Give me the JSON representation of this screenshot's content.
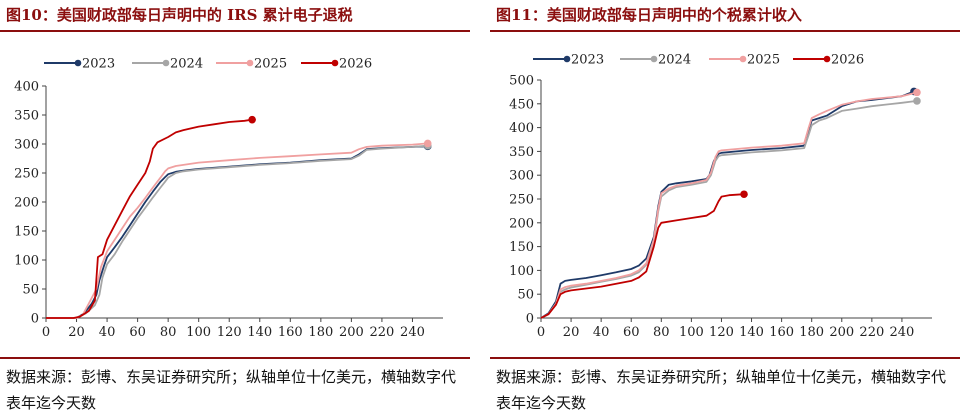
{
  "figures": [
    {
      "title": "图10：美国财政部每日声明中的 IRS 累计电子退税",
      "source": "数据来源：彭博、东吴证券研究所；纵轴单位十亿美元，横轴数字代表年迄今天数"
    },
    {
      "title": "图11：美国财政部每日声明中的个税累计收入",
      "source": "数据来源：彭博、东吴证券研究所；纵轴单位十亿美元，横轴数字代表年迄今天数"
    }
  ],
  "chart_data": [
    {
      "type": "line",
      "title": "",
      "xlabel": "",
      "ylabel": "",
      "xlim": [
        0,
        260
      ],
      "ylim": [
        0,
        400
      ],
      "xticks": [
        0,
        20,
        40,
        60,
        80,
        100,
        120,
        140,
        160,
        180,
        200,
        220,
        240
      ],
      "yticks": [
        0,
        50,
        100,
        150,
        200,
        250,
        300,
        350,
        400
      ],
      "grid": false,
      "legend_position": "top",
      "series": [
        {
          "name": "2023",
          "color": "#1f3a68",
          "end_marker": true,
          "points": [
            [
              0,
              0
            ],
            [
              20,
              0
            ],
            [
              25,
              8
            ],
            [
              30,
              25
            ],
            [
              33,
              40
            ],
            [
              35,
              65
            ],
            [
              38,
              90
            ],
            [
              40,
              105
            ],
            [
              45,
              122
            ],
            [
              50,
              140
            ],
            [
              55,
              160
            ],
            [
              60,
              180
            ],
            [
              65,
              200
            ],
            [
              70,
              218
            ],
            [
              75,
              235
            ],
            [
              78,
              243
            ],
            [
              80,
              248
            ],
            [
              85,
              252
            ],
            [
              90,
              254
            ],
            [
              100,
              257
            ],
            [
              120,
              261
            ],
            [
              140,
              265
            ],
            [
              160,
              268
            ],
            [
              180,
              272
            ],
            [
              200,
              275
            ],
            [
              205,
              282
            ],
            [
              210,
              291
            ],
            [
              220,
              293
            ],
            [
              240,
              295
            ],
            [
              250,
              296
            ]
          ]
        },
        {
          "name": "2024",
          "color": "#a6a6a6",
          "end_marker": true,
          "points": [
            [
              0,
              0
            ],
            [
              20,
              0
            ],
            [
              26,
              8
            ],
            [
              32,
              22
            ],
            [
              35,
              40
            ],
            [
              37,
              70
            ],
            [
              40,
              93
            ],
            [
              45,
              110
            ],
            [
              50,
              132
            ],
            [
              55,
              152
            ],
            [
              60,
              172
            ],
            [
              65,
              190
            ],
            [
              70,
              208
            ],
            [
              75,
              225
            ],
            [
              78,
              235
            ],
            [
              80,
              242
            ],
            [
              85,
              250
            ],
            [
              90,
              253
            ],
            [
              100,
              256
            ],
            [
              120,
              260
            ],
            [
              140,
              264
            ],
            [
              160,
              267
            ],
            [
              180,
              271
            ],
            [
              200,
              274
            ],
            [
              205,
              280
            ],
            [
              210,
              290
            ],
            [
              220,
              292
            ],
            [
              240,
              295
            ],
            [
              250,
              297
            ]
          ]
        },
        {
          "name": "2025",
          "color": "#f0a0a0",
          "end_marker": true,
          "points": [
            [
              0,
              0
            ],
            [
              20,
              0
            ],
            [
              24,
              5
            ],
            [
              28,
              25
            ],
            [
              33,
              50
            ],
            [
              36,
              88
            ],
            [
              40,
              115
            ],
            [
              45,
              135
            ],
            [
              50,
              155
            ],
            [
              55,
              175
            ],
            [
              60,
              190
            ],
            [
              65,
              207
            ],
            [
              70,
              225
            ],
            [
              75,
              242
            ],
            [
              78,
              253
            ],
            [
              80,
              258
            ],
            [
              85,
              262
            ],
            [
              90,
              264
            ],
            [
              100,
              268
            ],
            [
              120,
              272
            ],
            [
              140,
              276
            ],
            [
              160,
              279
            ],
            [
              180,
              282
            ],
            [
              200,
              285
            ],
            [
              205,
              291
            ],
            [
              210,
              295
            ],
            [
              220,
              297
            ],
            [
              240,
              299
            ],
            [
              250,
              301
            ]
          ]
        },
        {
          "name": "2026",
          "color": "#c00000",
          "end_marker": true,
          "points": [
            [
              0,
              0
            ],
            [
              18,
              0
            ],
            [
              22,
              2
            ],
            [
              28,
              12
            ],
            [
              32,
              30
            ],
            [
              34,
              105
            ],
            [
              37,
              110
            ],
            [
              40,
              135
            ],
            [
              45,
              160
            ],
            [
              50,
              185
            ],
            [
              55,
              210
            ],
            [
              60,
              230
            ],
            [
              65,
              250
            ],
            [
              68,
              270
            ],
            [
              70,
              292
            ],
            [
              73,
              303
            ],
            [
              80,
              312
            ],
            [
              85,
              320
            ],
            [
              90,
              324
            ],
            [
              100,
              330
            ],
            [
              110,
              334
            ],
            [
              120,
              338
            ],
            [
              130,
              340
            ],
            [
              135,
              342
            ]
          ]
        }
      ]
    },
    {
      "type": "line",
      "title": "",
      "xlabel": "",
      "ylabel": "",
      "xlim": [
        0,
        260
      ],
      "ylim": [
        0,
        500
      ],
      "xticks": [
        0,
        20,
        40,
        60,
        80,
        100,
        120,
        140,
        160,
        180,
        200,
        220,
        240
      ],
      "yticks": [
        0,
        50,
        100,
        150,
        200,
        250,
        300,
        350,
        400,
        450,
        500
      ],
      "grid": false,
      "legend_position": "top",
      "series": [
        {
          "name": "2023",
          "color": "#1f3a68",
          "end_marker": true,
          "points": [
            [
              0,
              0
            ],
            [
              5,
              10
            ],
            [
              10,
              35
            ],
            [
              13,
              72
            ],
            [
              16,
              78
            ],
            [
              20,
              80
            ],
            [
              30,
              84
            ],
            [
              40,
              90
            ],
            [
              50,
              96
            ],
            [
              60,
              103
            ],
            [
              65,
              110
            ],
            [
              70,
              125
            ],
            [
              75,
              170
            ],
            [
              78,
              235
            ],
            [
              80,
              265
            ],
            [
              85,
              280
            ],
            [
              90,
              283
            ],
            [
              100,
              287
            ],
            [
              110,
              292
            ],
            [
              112,
              300
            ],
            [
              115,
              330
            ],
            [
              118,
              345
            ],
            [
              120,
              347
            ],
            [
              130,
              350
            ],
            [
              140,
              353
            ],
            [
              160,
              357
            ],
            [
              175,
              362
            ],
            [
              178,
              395
            ],
            [
              180,
              415
            ],
            [
              185,
              420
            ],
            [
              190,
              425
            ],
            [
              200,
              445
            ],
            [
              210,
              455
            ],
            [
              220,
              458
            ],
            [
              240,
              466
            ],
            [
              248,
              476
            ]
          ]
        },
        {
          "name": "2024",
          "color": "#a6a6a6",
          "end_marker": true,
          "points": [
            [
              0,
              0
            ],
            [
              5,
              8
            ],
            [
              10,
              30
            ],
            [
              13,
              55
            ],
            [
              16,
              60
            ],
            [
              20,
              64
            ],
            [
              30,
              70
            ],
            [
              40,
              76
            ],
            [
              50,
              82
            ],
            [
              60,
              89
            ],
            [
              65,
              96
            ],
            [
              70,
              112
            ],
            [
              75,
              158
            ],
            [
              78,
              225
            ],
            [
              80,
              255
            ],
            [
              85,
              268
            ],
            [
              90,
              275
            ],
            [
              100,
              280
            ],
            [
              110,
              286
            ],
            [
              113,
              300
            ],
            [
              116,
              330
            ],
            [
              118,
              340
            ],
            [
              120,
              342
            ],
            [
              130,
              345
            ],
            [
              140,
              348
            ],
            [
              160,
              352
            ],
            [
              175,
              357
            ],
            [
              178,
              385
            ],
            [
              180,
              405
            ],
            [
              185,
              415
            ],
            [
              190,
              420
            ],
            [
              200,
              435
            ],
            [
              210,
              440
            ],
            [
              220,
              445
            ],
            [
              240,
              452
            ],
            [
              250,
              456
            ]
          ]
        },
        {
          "name": "2025",
          "color": "#f0a0a0",
          "end_marker": true,
          "points": [
            [
              0,
              0
            ],
            [
              5,
              8
            ],
            [
              10,
              30
            ],
            [
              13,
              60
            ],
            [
              16,
              65
            ],
            [
              20,
              68
            ],
            [
              30,
              72
            ],
            [
              40,
              78
            ],
            [
              50,
              84
            ],
            [
              60,
              92
            ],
            [
              65,
              100
            ],
            [
              70,
              115
            ],
            [
              75,
              165
            ],
            [
              78,
              230
            ],
            [
              80,
              262
            ],
            [
              85,
              272
            ],
            [
              90,
              278
            ],
            [
              100,
              283
            ],
            [
              110,
              290
            ],
            [
              113,
              305
            ],
            [
              116,
              338
            ],
            [
              118,
              350
            ],
            [
              120,
              352
            ],
            [
              130,
              355
            ],
            [
              140,
              358
            ],
            [
              160,
              362
            ],
            [
              175,
              367
            ],
            [
              178,
              400
            ],
            [
              180,
              420
            ],
            [
              185,
              428
            ],
            [
              190,
              435
            ],
            [
              200,
              448
            ],
            [
              210,
              455
            ],
            [
              220,
              460
            ],
            [
              240,
              466
            ],
            [
              250,
              474
            ]
          ]
        },
        {
          "name": "2026",
          "color": "#c00000",
          "end_marker": true,
          "points": [
            [
              0,
              0
            ],
            [
              5,
              8
            ],
            [
              10,
              28
            ],
            [
              13,
              50
            ],
            [
              16,
              55
            ],
            [
              20,
              58
            ],
            [
              30,
              62
            ],
            [
              40,
              66
            ],
            [
              50,
              72
            ],
            [
              60,
              78
            ],
            [
              65,
              85
            ],
            [
              70,
              98
            ],
            [
              75,
              150
            ],
            [
              78,
              190
            ],
            [
              80,
              200
            ],
            [
              90,
              205
            ],
            [
              100,
              210
            ],
            [
              110,
              215
            ],
            [
              115,
              225
            ],
            [
              118,
              245
            ],
            [
              120,
              255
            ],
            [
              125,
              258
            ],
            [
              130,
              259
            ],
            [
              135,
              260
            ]
          ]
        }
      ]
    }
  ]
}
